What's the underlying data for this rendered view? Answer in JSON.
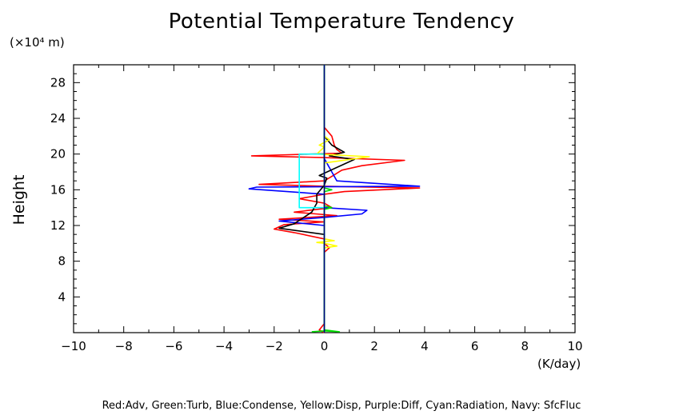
{
  "chart_data": {
    "type": "line",
    "title": "Potential Temperature Tendency",
    "ylabel": "Height",
    "yunits": "(×10⁴ m)",
    "xunits": "(K/day)",
    "xlim": [
      -10,
      10
    ],
    "ylim": [
      0,
      30
    ],
    "xticks": [
      -10,
      -8,
      -6,
      -4,
      -2,
      0,
      2,
      4,
      6,
      8,
      10
    ],
    "xtick_labels": [
      "−10",
      "−8",
      "−6",
      "−4",
      "−2",
      "0",
      "2",
      "4",
      "6",
      "8",
      "10"
    ],
    "yticks": [
      4,
      8,
      12,
      16,
      20,
      24,
      28
    ],
    "ytick_labels": [
      "4",
      "8",
      "12",
      "16",
      "20",
      "24",
      "28"
    ],
    "grid": false,
    "legend_text": "Red:Adv, Green:Turb, Blue:Condense, Yellow:Disp, Purple:Diff, Cyan:Radiation, Navy: SfcFluc",
    "series": [
      {
        "color": "#ff0000",
        "points": [
          [
            0,
            0
          ],
          [
            -0.2,
            0.3
          ],
          [
            0,
            1
          ],
          [
            0,
            9
          ],
          [
            0.2,
            9.5
          ],
          [
            0,
            10
          ],
          [
            0,
            10.5
          ],
          [
            -1.2,
            11.2
          ],
          [
            -2.0,
            11.6
          ],
          [
            -1.6,
            12.1
          ],
          [
            0,
            12.4
          ],
          [
            -1.8,
            12.7
          ],
          [
            0.5,
            13.1
          ],
          [
            -1.2,
            13.5
          ],
          [
            0.3,
            14
          ],
          [
            0,
            14.5
          ],
          [
            -1,
            15
          ],
          [
            0,
            15.5
          ],
          [
            0.8,
            15.8
          ],
          [
            3.8,
            16.2
          ],
          [
            0,
            16.4
          ],
          [
            -2.6,
            16.6
          ],
          [
            0,
            17
          ],
          [
            0.3,
            17.5
          ],
          [
            0.7,
            18.2
          ],
          [
            1.5,
            18.7
          ],
          [
            3.2,
            19.3
          ],
          [
            0,
            19.6
          ],
          [
            -2.9,
            19.8
          ],
          [
            0.7,
            20.1
          ],
          [
            0.5,
            20.5
          ],
          [
            0.4,
            21
          ],
          [
            0.3,
            22
          ],
          [
            0,
            23
          ],
          [
            0,
            30
          ]
        ]
      },
      {
        "color": "#0000ff",
        "points": [
          [
            0,
            0
          ],
          [
            0,
            9
          ],
          [
            0,
            12
          ],
          [
            -1.8,
            12.5
          ],
          [
            0,
            12.9
          ],
          [
            1.5,
            13.3
          ],
          [
            1.7,
            13.7
          ],
          [
            0,
            14
          ],
          [
            0,
            15.5
          ],
          [
            -3.0,
            16.1
          ],
          [
            -2.7,
            16.3
          ],
          [
            3.8,
            16.4
          ],
          [
            0.5,
            17
          ],
          [
            0.3,
            18
          ],
          [
            0,
            19.5
          ],
          [
            0,
            30
          ]
        ]
      },
      {
        "color": "#000000",
        "points": [
          [
            0,
            0
          ],
          [
            0,
            10
          ],
          [
            0,
            11
          ],
          [
            -1.8,
            11.7
          ],
          [
            -1.2,
            12.2
          ],
          [
            -0.5,
            13.5
          ],
          [
            -0.3,
            14.5
          ],
          [
            -0.3,
            15.5
          ],
          [
            0,
            16.5
          ],
          [
            0.1,
            17.3
          ],
          [
            -0.2,
            17.6
          ],
          [
            0.5,
            18.5
          ],
          [
            1.2,
            19.4
          ],
          [
            0.2,
            19.8
          ],
          [
            0.8,
            20.2
          ],
          [
            0.3,
            21
          ],
          [
            0,
            22
          ],
          [
            0,
            30
          ]
        ]
      },
      {
        "color": "#ffff00",
        "points": [
          [
            0,
            0
          ],
          [
            0,
            9.5
          ],
          [
            0.5,
            9.7
          ],
          [
            0,
            10
          ],
          [
            -0.3,
            10.1
          ],
          [
            0.4,
            10.3
          ],
          [
            0,
            10.5
          ],
          [
            0,
            19
          ],
          [
            1.8,
            19.7
          ],
          [
            -0.3,
            20
          ],
          [
            0,
            20.8
          ],
          [
            -0.2,
            21
          ],
          [
            0.2,
            21.6
          ],
          [
            0,
            22
          ],
          [
            0,
            30
          ]
        ]
      },
      {
        "color": "#00ffff",
        "points": [
          [
            0,
            0
          ],
          [
            0,
            14
          ],
          [
            -1,
            14
          ],
          [
            -1,
            20
          ],
          [
            0,
            20
          ],
          [
            0,
            30
          ]
        ]
      },
      {
        "color": "#00dd00",
        "points": [
          [
            -0.5,
            0.1
          ],
          [
            0,
            0.2
          ],
          [
            0.6,
            0.1
          ],
          [
            0,
            0.3
          ],
          [
            0,
            13.8
          ],
          [
            0.3,
            14
          ],
          [
            0,
            14.2
          ],
          [
            0,
            15.8
          ],
          [
            0.3,
            16
          ],
          [
            0,
            16.2
          ],
          [
            0,
            30
          ]
        ]
      },
      {
        "color": "#000080",
        "points": [
          [
            0,
            0
          ],
          [
            0,
            30
          ]
        ]
      }
    ]
  }
}
